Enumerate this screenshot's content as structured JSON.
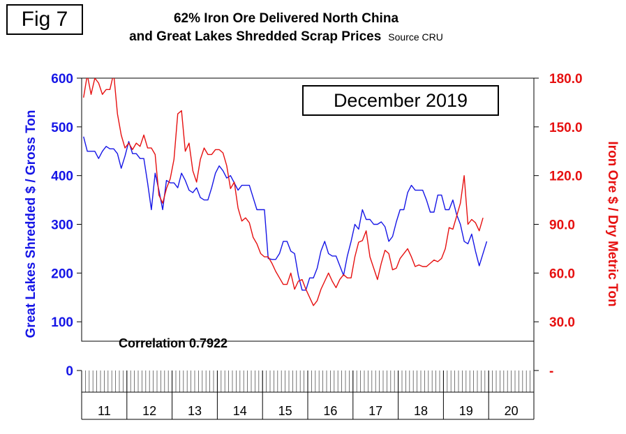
{
  "figure_label": "Fig 7",
  "title_line1": "62% Iron Ore Delivered North China",
  "title_line2": "and Great Lakes Shredded Scrap Prices",
  "source": "Source CRU",
  "period_box": "December 2019",
  "correlation": "Correlation 0.7922",
  "colors": {
    "scrap": "#1515e6",
    "iron_ore": "#e61010",
    "axis": "#000000"
  },
  "chart_data": {
    "type": "line",
    "xlabel": "",
    "ylabel_left": "Great Lakes Shredded $ / Gross Ton",
    "ylabel_right": "Iron Ore $ / Dry Metric Ton",
    "x_tick_labels": [
      "11",
      "12",
      "13",
      "14",
      "15",
      "16",
      "17",
      "18",
      "19",
      "20"
    ],
    "x_range": [
      "2011-01",
      "2020-12"
    ],
    "ylim_left": [
      0,
      600
    ],
    "ylim_right": [
      0,
      180
    ],
    "y_ticks_left": [
      "0",
      "100",
      "200",
      "300",
      "400",
      "500",
      "600"
    ],
    "y_ticks_right": [
      "-",
      "30.0",
      "60.0",
      "90.0",
      "120.0",
      "150.0",
      "180.0"
    ],
    "grid": false,
    "series": [
      {
        "name": "Great Lakes Shredded Scrap",
        "axis": "left",
        "color": "#1515e6",
        "start": "2011-01",
        "values": [
          480,
          450,
          450,
          450,
          435,
          450,
          460,
          455,
          455,
          445,
          415,
          440,
          470,
          445,
          445,
          435,
          435,
          385,
          330,
          405,
          370,
          330,
          390,
          385,
          385,
          375,
          405,
          390,
          370,
          365,
          375,
          355,
          350,
          350,
          375,
          405,
          420,
          410,
          395,
          400,
          385,
          370,
          380,
          380,
          380,
          355,
          330,
          330,
          330,
          230,
          228,
          228,
          240,
          265,
          265,
          245,
          240,
          195,
          165,
          165,
          190,
          190,
          210,
          245,
          265,
          240,
          235,
          235,
          215,
          195,
          235,
          265,
          300,
          290,
          330,
          310,
          310,
          300,
          300,
          305,
          295,
          265,
          275,
          305,
          330,
          330,
          365,
          380,
          370,
          370,
          370,
          350,
          325,
          325,
          360,
          360,
          330,
          330,
          350,
          320,
          300,
          265,
          260,
          280,
          245,
          215,
          240,
          265
        ]
      },
      {
        "name": "62% Iron Ore Delivered North China",
        "axis": "right",
        "color": "#e61010",
        "start": "2011-01",
        "values": [
          168,
          182,
          170,
          180,
          177,
          170,
          173,
          173,
          183,
          158,
          145,
          137,
          140,
          136,
          140,
          138,
          145,
          137,
          137,
          133,
          108,
          103,
          112,
          118,
          130,
          158,
          160,
          135,
          140,
          123,
          116,
          130,
          137,
          133,
          133,
          136,
          136,
          134,
          126,
          112,
          116,
          100,
          92,
          94,
          91,
          82,
          78,
          72,
          70,
          70,
          66,
          61,
          57,
          53,
          53,
          60,
          50,
          55,
          56,
          50,
          45,
          40,
          43,
          50,
          55,
          60,
          55,
          51,
          56,
          59,
          57,
          57,
          70,
          79,
          80,
          86,
          70,
          63,
          56,
          66,
          74,
          72,
          62,
          63,
          69,
          72,
          75,
          70,
          64,
          65,
          64,
          64,
          66,
          68,
          67,
          69,
          75,
          88,
          87,
          95,
          103,
          120,
          90,
          93,
          91,
          86,
          94
        ]
      }
    ]
  }
}
